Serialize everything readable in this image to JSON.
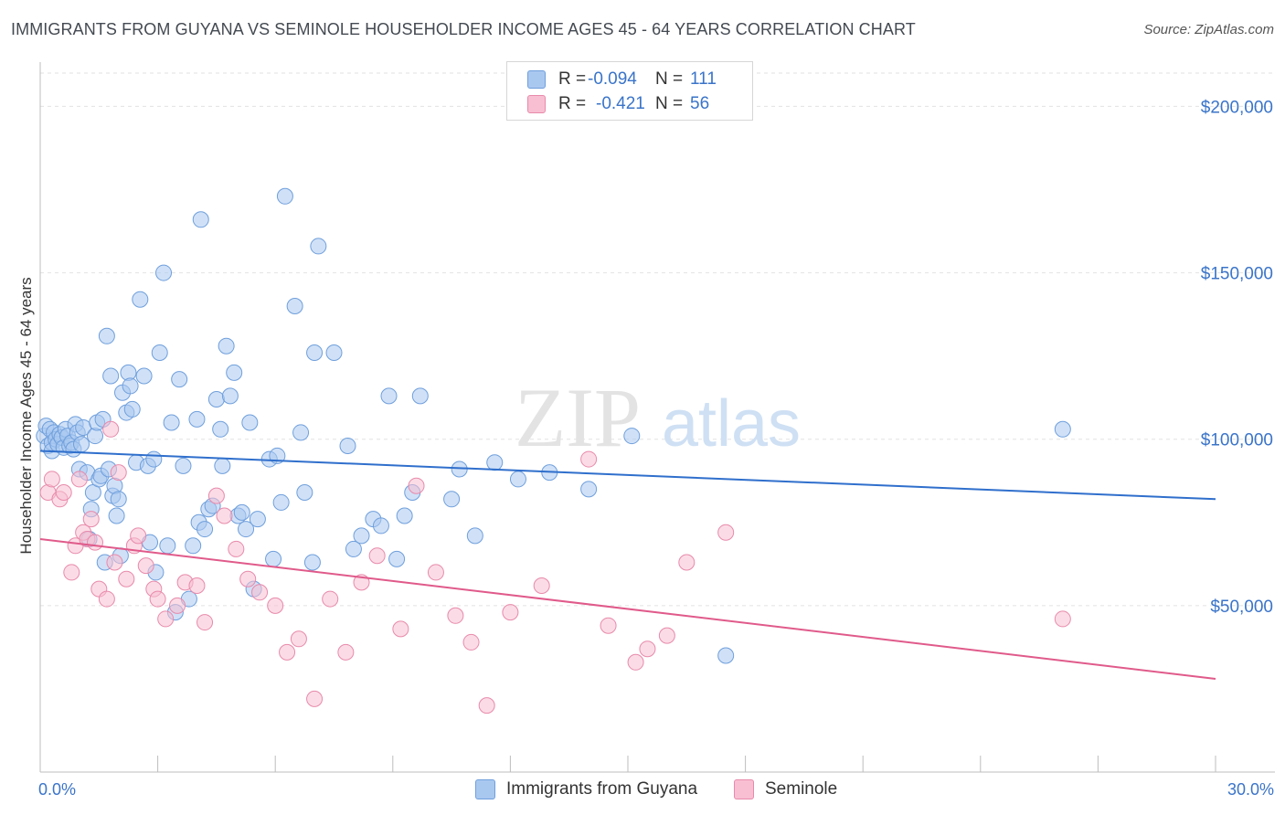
{
  "title": "IMMIGRANTS FROM GUYANA VS SEMINOLE HOUSEHOLDER INCOME AGES 45 - 64 YEARS CORRELATION CHART",
  "source": "Source: ZipAtlas.com",
  "watermark": {
    "zip": "ZIP",
    "atlas": "atlas"
  },
  "legend": {
    "rows": [
      {
        "r_label": "R =",
        "r_value": "-0.094",
        "n_label": "N =",
        "n_value": "111",
        "color": "#a9c8f0",
        "border": "#6f9fdc"
      },
      {
        "r_label": "R =",
        "r_value": "-0.421",
        "n_label": "N =",
        "n_value": "56",
        "color": "#f8bfd2",
        "border": "#e88aab"
      }
    ]
  },
  "bottom_legend": {
    "items": [
      {
        "label": "Immigrants from Guyana",
        "color": "#a9c8f0",
        "border": "#6f9fdc"
      },
      {
        "label": "Seminole",
        "color": "#f8bfd2",
        "border": "#e88aab"
      }
    ]
  },
  "chart_data": {
    "type": "scatter",
    "xlabel": "",
    "ylabel": "Householder Income Ages 45 - 64 years",
    "xlim": [
      0,
      30
    ],
    "ylim": [
      0,
      210000
    ],
    "x_tick_labels": [
      {
        "value": 0,
        "label": "0.0%"
      },
      {
        "value": 30,
        "label": "30.0%"
      }
    ],
    "y_tick_labels": [
      {
        "value": 50000,
        "label": "$50,000"
      },
      {
        "value": 100000,
        "label": "$100,000"
      },
      {
        "value": 150000,
        "label": "$150,000"
      },
      {
        "value": 200000,
        "label": "$200,000"
      }
    ],
    "grid": true,
    "legend_position": "top-center",
    "series": [
      {
        "name": "Immigrants from Guyana",
        "color": "#6f9fdc",
        "fill": "#a9c8f0",
        "trend": {
          "x": [
            0,
            30
          ],
          "y": [
            96500,
            82000
          ],
          "color": "#2f6fcc"
        },
        "points": [
          [
            0.1,
            101000
          ],
          [
            0.15,
            104000
          ],
          [
            0.2,
            98000
          ],
          [
            0.25,
            103000
          ],
          [
            0.3,
            99000
          ],
          [
            0.3,
            96500
          ],
          [
            0.35,
            102000
          ],
          [
            0.4,
            100000
          ],
          [
            0.45,
            98500
          ],
          [
            0.5,
            101500
          ],
          [
            0.55,
            100500
          ],
          [
            0.6,
            97500
          ],
          [
            0.65,
            103000
          ],
          [
            0.7,
            101000
          ],
          [
            0.75,
            98000
          ],
          [
            0.8,
            99000
          ],
          [
            0.85,
            97000
          ],
          [
            0.9,
            104500
          ],
          [
            0.95,
            102000
          ],
          [
            1.0,
            91000
          ],
          [
            1.05,
            98500
          ],
          [
            1.1,
            103500
          ],
          [
            1.2,
            90000
          ],
          [
            1.25,
            70000
          ],
          [
            1.3,
            79000
          ],
          [
            1.35,
            84000
          ],
          [
            1.4,
            101000
          ],
          [
            1.45,
            105000
          ],
          [
            1.5,
            88000
          ],
          [
            1.55,
            89000
          ],
          [
            1.6,
            106000
          ],
          [
            1.65,
            63000
          ],
          [
            1.7,
            131000
          ],
          [
            1.75,
            91000
          ],
          [
            1.8,
            119000
          ],
          [
            1.85,
            83000
          ],
          [
            1.9,
            86000
          ],
          [
            1.95,
            77000
          ],
          [
            2.0,
            82000
          ],
          [
            2.05,
            65000
          ],
          [
            2.1,
            114000
          ],
          [
            2.2,
            108000
          ],
          [
            2.25,
            120000
          ],
          [
            2.3,
            116000
          ],
          [
            2.35,
            109000
          ],
          [
            2.45,
            93000
          ],
          [
            2.55,
            142000
          ],
          [
            2.65,
            119000
          ],
          [
            2.75,
            92000
          ],
          [
            2.8,
            69000
          ],
          [
            2.9,
            94000
          ],
          [
            2.95,
            60000
          ],
          [
            3.05,
            126000
          ],
          [
            3.15,
            150000
          ],
          [
            3.25,
            68000
          ],
          [
            3.35,
            105000
          ],
          [
            3.45,
            48000
          ],
          [
            3.55,
            118000
          ],
          [
            3.65,
            92000
          ],
          [
            3.8,
            52000
          ],
          [
            3.9,
            68000
          ],
          [
            4.0,
            106000
          ],
          [
            4.05,
            75000
          ],
          [
            4.1,
            166000
          ],
          [
            4.2,
            73000
          ],
          [
            4.3,
            79000
          ],
          [
            4.4,
            80000
          ],
          [
            4.5,
            112000
          ],
          [
            4.6,
            103000
          ],
          [
            4.65,
            92000
          ],
          [
            4.75,
            128000
          ],
          [
            4.85,
            113000
          ],
          [
            4.95,
            120000
          ],
          [
            5.05,
            77000
          ],
          [
            5.15,
            78000
          ],
          [
            5.25,
            73000
          ],
          [
            5.35,
            105000
          ],
          [
            5.45,
            55000
          ],
          [
            5.55,
            76000
          ],
          [
            5.85,
            94000
          ],
          [
            5.95,
            64000
          ],
          [
            6.05,
            95000
          ],
          [
            6.15,
            81000
          ],
          [
            6.25,
            173000
          ],
          [
            6.5,
            140000
          ],
          [
            6.65,
            102000
          ],
          [
            6.75,
            84000
          ],
          [
            6.95,
            63000
          ],
          [
            7.0,
            126000
          ],
          [
            7.1,
            158000
          ],
          [
            7.5,
            126000
          ],
          [
            7.85,
            98000
          ],
          [
            8.0,
            67000
          ],
          [
            8.2,
            71000
          ],
          [
            8.5,
            76000
          ],
          [
            8.7,
            74000
          ],
          [
            8.9,
            113000
          ],
          [
            9.1,
            64000
          ],
          [
            9.3,
            77000
          ],
          [
            9.5,
            84000
          ],
          [
            9.7,
            113000
          ],
          [
            10.5,
            82000
          ],
          [
            10.7,
            91000
          ],
          [
            11.1,
            71000
          ],
          [
            11.6,
            93000
          ],
          [
            12.2,
            88000
          ],
          [
            13.0,
            90000
          ],
          [
            14.0,
            85000
          ],
          [
            15.1,
            101000
          ],
          [
            17.5,
            35000
          ],
          [
            26.1,
            103000
          ]
        ]
      },
      {
        "name": "Seminole",
        "color": "#e88aab",
        "fill": "#f8bfd2",
        "trend": {
          "x": [
            0,
            30
          ],
          "y": [
            70000,
            28000
          ],
          "color": "#e05a8a"
        },
        "points": [
          [
            0.2,
            84000
          ],
          [
            0.3,
            88000
          ],
          [
            0.5,
            82000
          ],
          [
            0.6,
            84000
          ],
          [
            0.8,
            60000
          ],
          [
            0.9,
            68000
          ],
          [
            1.0,
            88000
          ],
          [
            1.1,
            72000
          ],
          [
            1.2,
            70000
          ],
          [
            1.3,
            76000
          ],
          [
            1.4,
            69000
          ],
          [
            1.5,
            55000
          ],
          [
            1.7,
            52000
          ],
          [
            1.8,
            103000
          ],
          [
            1.9,
            63000
          ],
          [
            2.0,
            90000
          ],
          [
            2.2,
            58000
          ],
          [
            2.4,
            68000
          ],
          [
            2.5,
            71000
          ],
          [
            2.7,
            62000
          ],
          [
            2.9,
            55000
          ],
          [
            3.0,
            52000
          ],
          [
            3.2,
            46000
          ],
          [
            3.5,
            50000
          ],
          [
            3.7,
            57000
          ],
          [
            4.0,
            56000
          ],
          [
            4.2,
            45000
          ],
          [
            4.5,
            83000
          ],
          [
            4.7,
            77000
          ],
          [
            5.0,
            67000
          ],
          [
            5.3,
            58000
          ],
          [
            5.6,
            54000
          ],
          [
            6.0,
            50000
          ],
          [
            6.3,
            36000
          ],
          [
            6.6,
            40000
          ],
          [
            7.0,
            22000
          ],
          [
            7.4,
            52000
          ],
          [
            7.8,
            36000
          ],
          [
            8.2,
            57000
          ],
          [
            8.6,
            65000
          ],
          [
            9.2,
            43000
          ],
          [
            9.6,
            86000
          ],
          [
            10.1,
            60000
          ],
          [
            10.6,
            47000
          ],
          [
            11.0,
            39000
          ],
          [
            11.4,
            20000
          ],
          [
            12.0,
            48000
          ],
          [
            12.8,
            56000
          ],
          [
            14.0,
            94000
          ],
          [
            14.5,
            44000
          ],
          [
            15.2,
            33000
          ],
          [
            15.5,
            37000
          ],
          [
            16.0,
            41000
          ],
          [
            16.5,
            63000
          ],
          [
            17.5,
            72000
          ],
          [
            26.1,
            46000
          ]
        ]
      }
    ]
  }
}
